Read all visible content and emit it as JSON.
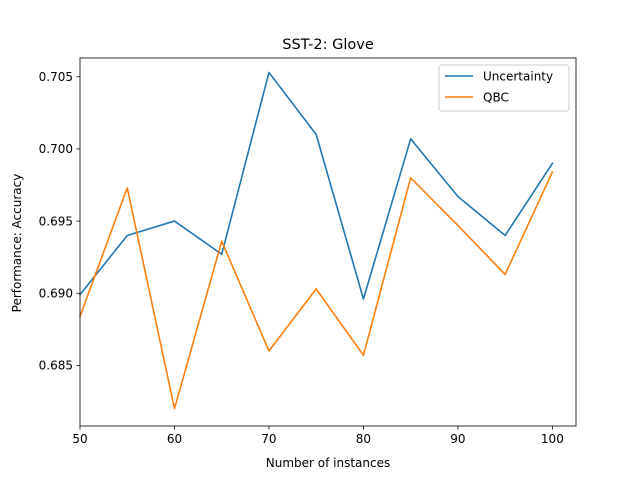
{
  "chart_data": {
    "type": "line",
    "title": "SST-2: Glove",
    "xlabel": "Number of instances",
    "ylabel": "Performance: Accuracy",
    "x": [
      50,
      55,
      60,
      65,
      70,
      75,
      80,
      85,
      90,
      95,
      100
    ],
    "xlim": [
      50,
      102.5
    ],
    "ylim": [
      0.6808,
      0.7063
    ],
    "xticks": [
      50,
      60,
      70,
      80,
      90,
      100
    ],
    "yticks": [
      0.685,
      0.69,
      0.695,
      0.7,
      0.705
    ],
    "ytick_labels": [
      "0.685",
      "0.690",
      "0.695",
      "0.700",
      "0.705"
    ],
    "grid": false,
    "legend_position": "top-right",
    "series": [
      {
        "name": "Uncertainty",
        "color": "#1f77b4",
        "values": [
          0.6899,
          0.694,
          0.695,
          0.6927,
          0.7053,
          0.701,
          0.6896,
          0.7007,
          0.6967,
          0.694,
          0.699
        ]
      },
      {
        "name": "QBC",
        "color": "#ff7f0e",
        "values": [
          0.6884,
          0.6973,
          0.682,
          0.6936,
          0.686,
          0.6903,
          0.6857,
          0.698,
          0.6947,
          0.6913,
          0.6984
        ]
      }
    ]
  }
}
